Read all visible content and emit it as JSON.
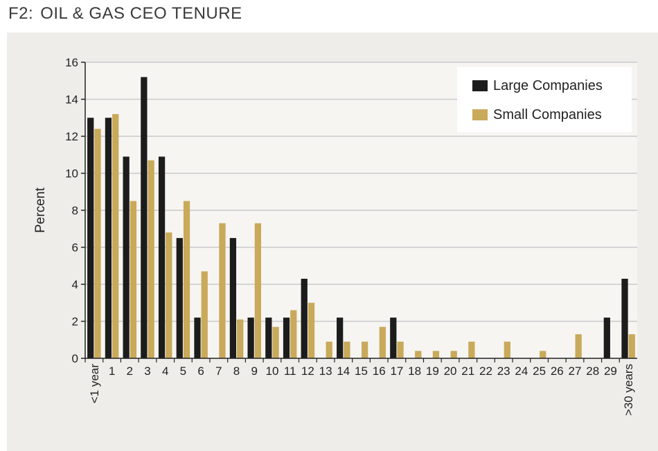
{
  "figure": {
    "number": "F2:",
    "title": "OIL & GAS CEO TENURE"
  },
  "colors": {
    "large": "#1c1c1c",
    "small": "#c9a95a",
    "panel": "#eeedea",
    "grid": "#c9c9c9"
  },
  "chart_data": {
    "type": "bar",
    "ylabel": "Percent",
    "xlabel": "",
    "ylim": [
      0,
      16
    ],
    "yticks": [
      0,
      2,
      4,
      6,
      8,
      10,
      12,
      14,
      16
    ],
    "grid": true,
    "legend_position": "top-right",
    "categories": [
      "<1 year",
      "1",
      "2",
      "3",
      "4",
      "5",
      "6",
      "7",
      "8",
      "9",
      "10",
      "11",
      "12",
      "13",
      "14",
      "15",
      "16",
      "17",
      "18",
      "19",
      "20",
      "21",
      "22",
      "23",
      "24",
      "25",
      "26",
      "27",
      "28",
      "29",
      ">30 years"
    ],
    "series": [
      {
        "name": "Large Companies",
        "values": [
          13.0,
          13.0,
          10.9,
          15.2,
          10.9,
          6.5,
          2.2,
          0,
          6.5,
          2.2,
          2.2,
          2.2,
          4.3,
          0,
          2.2,
          0,
          0,
          2.2,
          0,
          0,
          0,
          0,
          0,
          0,
          0,
          0,
          0,
          0,
          0,
          2.2,
          4.3
        ]
      },
      {
        "name": "Small Companies",
        "values": [
          12.4,
          13.2,
          8.5,
          10.7,
          6.8,
          8.5,
          4.7,
          7.3,
          2.1,
          7.3,
          1.7,
          2.6,
          3.0,
          0.9,
          0.9,
          0.9,
          1.7,
          0.9,
          0.4,
          0.4,
          0.4,
          0.9,
          0,
          0.9,
          0,
          0.4,
          0,
          1.3,
          0,
          0,
          1.3
        ]
      }
    ]
  }
}
